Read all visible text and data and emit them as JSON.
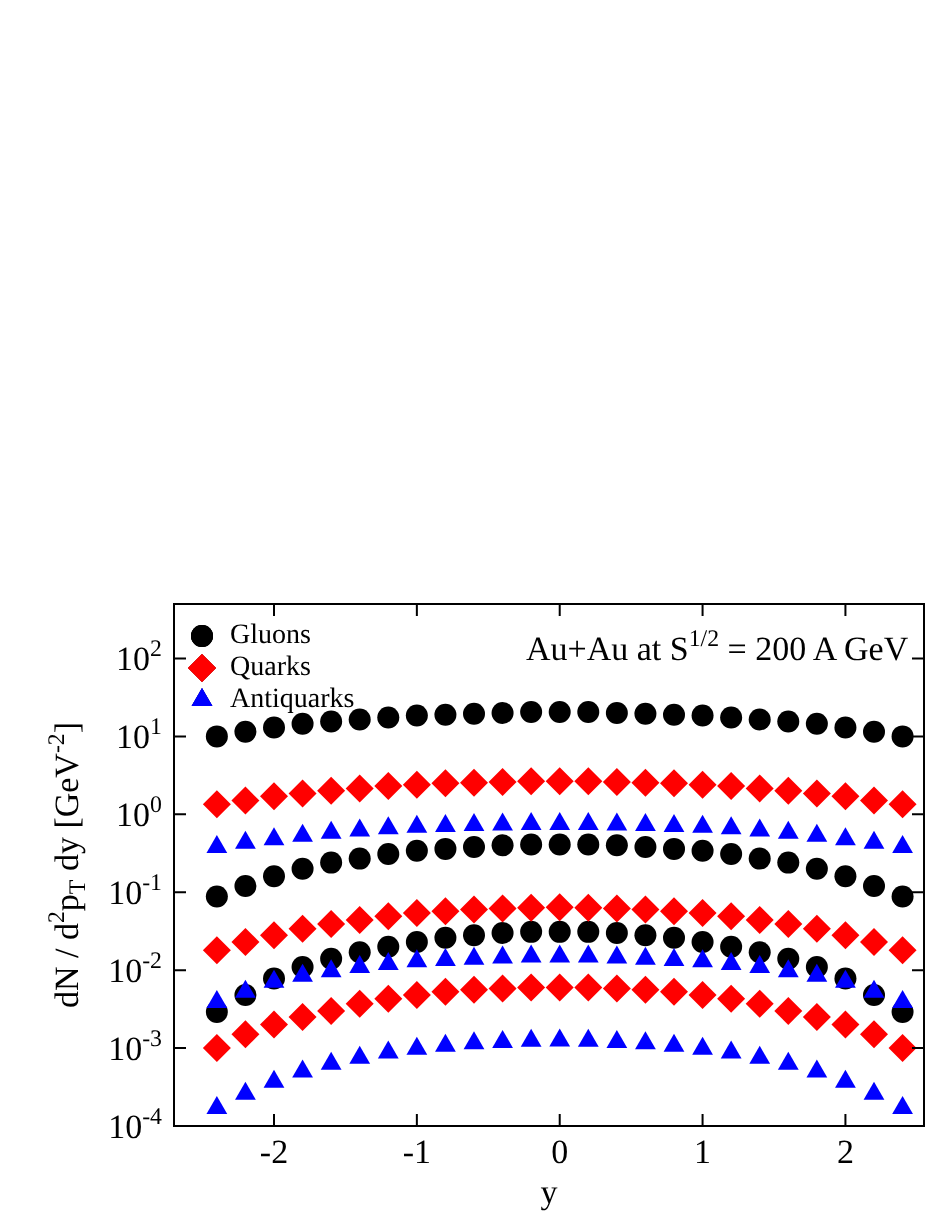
{
  "chart_data": {
    "type": "scatter",
    "ylabel": "dN / d$^{2}$p$_{T}$ dy [GeV$^{-2}$]",
    "xlabel": "y",
    "annotations": [
      "Au+Au at S$^{1/2}$ = 200 A GeV"
    ],
    "log": "y",
    "grid": false,
    "legend": "top left",
    "xlim": [
      -2.7,
      2.55
    ],
    "xticks": [
      -2,
      -1,
      0,
      1,
      2
    ],
    "ylim": [
      0.0001,
      500
    ],
    "yticks": [
      {
        "value": 0.0001,
        "label": "10$^{-4}$"
      },
      {
        "value": 0.001,
        "label": "10$^{-3}$"
      },
      {
        "value": 0.01,
        "label": "10$^{-2}$"
      },
      {
        "value": 0.1,
        "label": "10$^{-1}$"
      },
      {
        "value": 1,
        "label": "10$^{0}$"
      },
      {
        "value": 10,
        "label": "10$^{1}$"
      },
      {
        "value": 100,
        "label": "10$^{2}$"
      }
    ],
    "x": [
      -2.4,
      -2.2,
      -2,
      -1.8,
      -1.6,
      -1.4,
      -1.2,
      -1,
      -0.8,
      -0.6,
      -0.4,
      -0.2,
      0,
      0.2,
      0.4,
      0.6,
      0.8,
      1,
      1.2,
      1.4,
      1.6,
      1.8,
      2,
      2.2,
      2.4
    ],
    "series": [
      {
        "name": "Gluons",
        "color": "#000000",
        "marker": "circle",
        "values": [
          10,
          11.5,
          13,
          14.5,
          15.5,
          16.5,
          17.5,
          18.5,
          19,
          19.5,
          20,
          20.5,
          20.5,
          20.5,
          20,
          19.5,
          19,
          18.5,
          17.5,
          16.5,
          15.5,
          14.5,
          13,
          11.5,
          10
        ]
      },
      {
        "color": "#000000",
        "marker": "circle",
        "values": [
          0.088,
          0.12,
          0.16,
          0.2,
          0.24,
          0.27,
          0.31,
          0.34,
          0.36,
          0.38,
          0.4,
          0.41,
          0.41,
          0.41,
          0.4,
          0.38,
          0.36,
          0.34,
          0.31,
          0.27,
          0.24,
          0.2,
          0.16,
          0.12,
          0.088
        ]
      },
      {
        "color": "#000000",
        "marker": "circle",
        "values": [
          0.0029,
          0.0048,
          0.0078,
          0.011,
          0.014,
          0.017,
          0.02,
          0.023,
          0.026,
          0.028,
          0.03,
          0.031,
          0.031,
          0.031,
          0.03,
          0.028,
          0.026,
          0.023,
          0.02,
          0.017,
          0.014,
          0.011,
          0.0078,
          0.0048,
          0.0029
        ]
      },
      {
        "name": "Quarks",
        "color": "#ff0000",
        "marker": "diamond",
        "values": [
          1.35,
          1.5,
          1.7,
          1.85,
          2,
          2.15,
          2.3,
          2.4,
          2.5,
          2.55,
          2.6,
          2.65,
          2.65,
          2.65,
          2.6,
          2.55,
          2.5,
          2.4,
          2.3,
          2.15,
          2,
          1.85,
          1.7,
          1.5,
          1.35
        ]
      },
      {
        "color": "#ff0000",
        "marker": "diamond",
        "values": [
          0.018,
          0.023,
          0.028,
          0.034,
          0.039,
          0.044,
          0.049,
          0.054,
          0.057,
          0.06,
          0.062,
          0.063,
          0.064,
          0.063,
          0.062,
          0.06,
          0.057,
          0.054,
          0.049,
          0.044,
          0.039,
          0.034,
          0.028,
          0.023,
          0.018
        ]
      },
      {
        "color": "#ff0000",
        "marker": "diamond",
        "values": [
          0.001,
          0.0015,
          0.002,
          0.0025,
          0.003,
          0.0037,
          0.0043,
          0.0048,
          0.0053,
          0.0056,
          0.0058,
          0.006,
          0.006,
          0.006,
          0.0058,
          0.0056,
          0.0053,
          0.0048,
          0.0043,
          0.0037,
          0.003,
          0.0025,
          0.002,
          0.0015,
          0.001
        ]
      },
      {
        "name": "Antiquarks",
        "color": "#0000ff",
        "marker": "triangle",
        "values": [
          0.38,
          0.43,
          0.48,
          0.53,
          0.58,
          0.62,
          0.66,
          0.69,
          0.71,
          0.73,
          0.74,
          0.75,
          0.75,
          0.75,
          0.74,
          0.73,
          0.71,
          0.69,
          0.66,
          0.62,
          0.58,
          0.53,
          0.48,
          0.43,
          0.38
        ]
      },
      {
        "color": "#0000ff",
        "marker": "triangle",
        "values": [
          0.0039,
          0.0053,
          0.0071,
          0.0085,
          0.0097,
          0.011,
          0.012,
          0.013,
          0.0135,
          0.014,
          0.0145,
          0.015,
          0.015,
          0.015,
          0.0145,
          0.014,
          0.0135,
          0.013,
          0.012,
          0.011,
          0.0097,
          0.0085,
          0.0071,
          0.0053,
          0.0039
        ]
      },
      {
        "color": "#0000ff",
        "marker": "triangle",
        "values": [
          0.00017,
          0.00026,
          0.00037,
          0.0005,
          0.00063,
          0.00075,
          0.00088,
          0.00098,
          0.00107,
          0.00115,
          0.0012,
          0.00124,
          0.00125,
          0.00124,
          0.0012,
          0.00115,
          0.00107,
          0.00098,
          0.00088,
          0.00075,
          0.00063,
          0.0005,
          0.00037,
          0.00026,
          0.00017
        ]
      }
    ]
  }
}
